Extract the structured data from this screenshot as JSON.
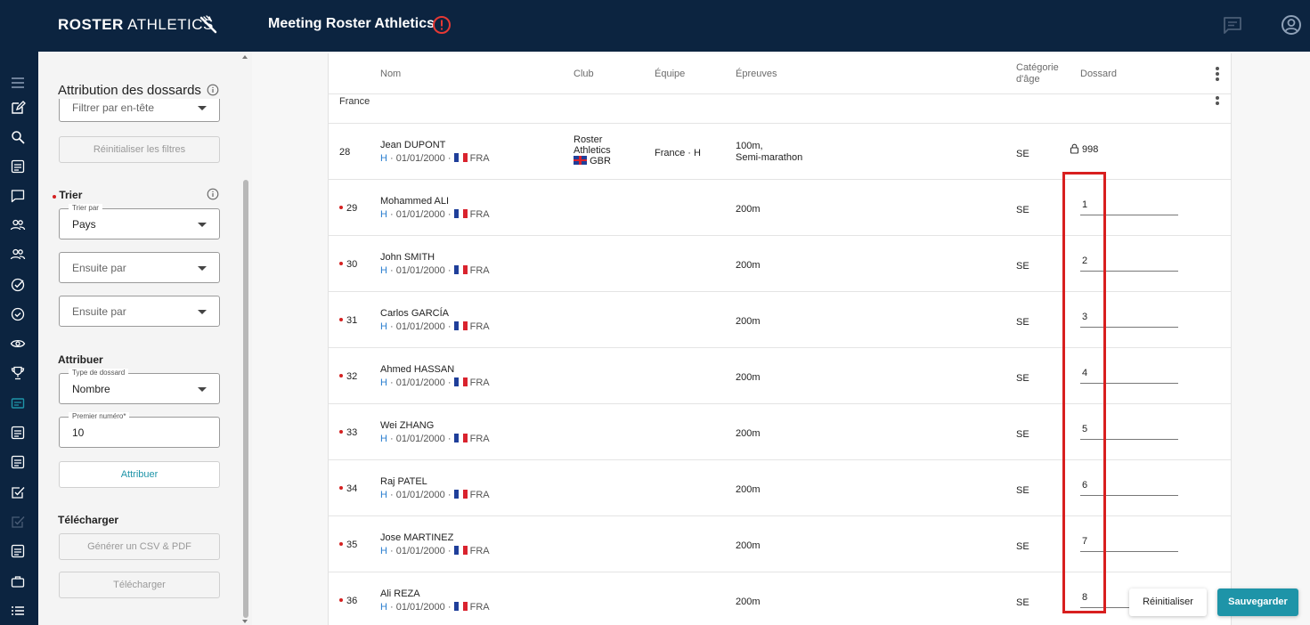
{
  "header": {
    "logo_bold": "ROSTER",
    "logo_light": "ATHLETICS",
    "title": "Meeting Roster Athletics",
    "alert_icon": "alert-circle-icon",
    "chat_icon": "chat-icon",
    "account_icon": "account-circle-icon"
  },
  "rail": {
    "icons": [
      "menu-icon",
      "edit-icon",
      "search-icon",
      "list-icon",
      "chat-icon",
      "people-icon",
      "people-icon",
      "check-circle-icon",
      "check-circle-icon",
      "eye-icon",
      "trophy-icon",
      "id-card-icon",
      "list-icon",
      "list-icon",
      "checkbox-icon",
      "checkbox-icon",
      "list-icon",
      "briefcase-icon",
      "list-icon"
    ]
  },
  "panel": {
    "title": "Attribution des dossards",
    "filter_placeholder": "Filtrer par en-tête",
    "reset_filters": "Réinitialiser les filtres",
    "sort_label": "Trier",
    "sort_by_label": "Trier par",
    "sort_by_value": "Pays",
    "then_by_1": "Ensuite par",
    "then_by_2": "Ensuite par",
    "assign_label": "Attribuer",
    "bib_type_label": "Type de dossard",
    "bib_type_value": "Nombre",
    "first_number_label": "Premier numéro*",
    "first_number_value": "10",
    "assign_button": "Attribuer",
    "download_label": "Télécharger",
    "generate_button": "Générer un CSV & PDF",
    "download_button": "Télécharger"
  },
  "table": {
    "headers": {
      "name": "Nom",
      "club": "Club",
      "team": "Équipe",
      "events": "Épreuves",
      "category_line1": "Catégorie",
      "category_line2": "d'âge",
      "bib": "Dossard"
    },
    "group": "France",
    "rows": [
      {
        "num": "28",
        "name": "Jean DUPONT",
        "gender": "H",
        "dob": "01/01/2000",
        "country": "FRA",
        "club_line1": "Roster",
        "club_line2": "Athletics",
        "club_country": "GBR",
        "team": "France · H",
        "event_line1": "100m,",
        "event_line2": "Semi-marathon",
        "category": "SE",
        "bib": "998",
        "locked": true
      },
      {
        "num": "29",
        "name": "Mohammed ALI",
        "gender": "H",
        "dob": "01/01/2000",
        "country": "FRA",
        "event": "200m",
        "category": "SE",
        "bib": "1"
      },
      {
        "num": "30",
        "name": "John SMITH",
        "gender": "H",
        "dob": "01/01/2000",
        "country": "FRA",
        "event": "200m",
        "category": "SE",
        "bib": "2"
      },
      {
        "num": "31",
        "name": "Carlos GARCÍA",
        "gender": "H",
        "dob": "01/01/2000",
        "country": "FRA",
        "event": "200m",
        "category": "SE",
        "bib": "3"
      },
      {
        "num": "32",
        "name": "Ahmed HASSAN",
        "gender": "H",
        "dob": "01/01/2000",
        "country": "FRA",
        "event": "200m",
        "category": "SE",
        "bib": "4"
      },
      {
        "num": "33",
        "name": "Wei ZHANG",
        "gender": "H",
        "dob": "01/01/2000",
        "country": "FRA",
        "event": "200m",
        "category": "SE",
        "bib": "5"
      },
      {
        "num": "34",
        "name": "Raj PATEL",
        "gender": "H",
        "dob": "01/01/2000",
        "country": "FRA",
        "event": "200m",
        "category": "SE",
        "bib": "6"
      },
      {
        "num": "35",
        "name": "Jose MARTINEZ",
        "gender": "H",
        "dob": "01/01/2000",
        "country": "FRA",
        "event": "200m",
        "category": "SE",
        "bib": "7"
      },
      {
        "num": "36",
        "name": "Ali REZA",
        "gender": "H",
        "dob": "01/01/2000",
        "country": "FRA",
        "event": "200m",
        "category": "SE",
        "bib": "8"
      }
    ]
  },
  "actions": {
    "reset": "Réinitialiser",
    "save": "Sauvegarder"
  },
  "colors": {
    "navy": "#0c2440",
    "accent": "#1e94a8",
    "highlight": "#d81f1f",
    "marker": "#d42020"
  }
}
